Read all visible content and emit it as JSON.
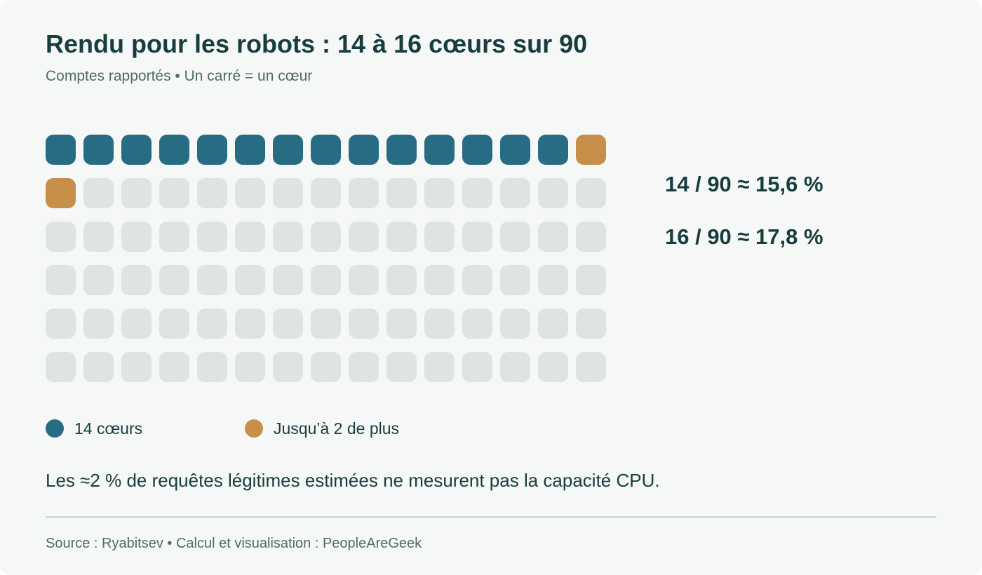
{
  "chart_data": {
    "type": "waffle",
    "title": "Rendu pour les robots : 14 à 16 cœurs sur 90",
    "subtitle": "Comptes rapportés • Un carré = un cœur",
    "total_cells": 90,
    "columns": 15,
    "rows": 6,
    "series": [
      {
        "name": "14 cœurs",
        "value": 14,
        "color": "#286c84"
      },
      {
        "name": "Jusqu’à 2 de plus",
        "value": 2,
        "color": "#c78f49"
      }
    ],
    "empty_color": "#dde4e2",
    "annotations": [
      "14 / 90 ≈ 15,6 %",
      "16 / 90 ≈ 17,8 %"
    ],
    "legend_position": "bottom"
  },
  "note": "Les ≈2 % de requêtes légitimes estimées ne mesurent pas la capacité CPU.",
  "source": "Source : Ryabitsev • Calcul et visualisation : PeopleAreGeek"
}
